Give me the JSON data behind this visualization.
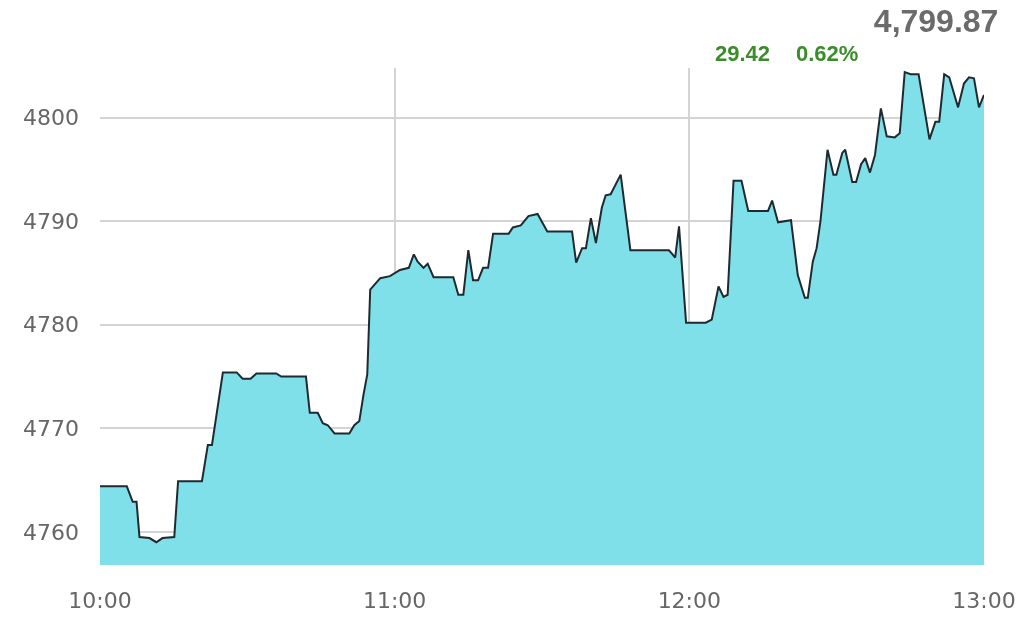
{
  "chart_data": {
    "type": "area",
    "title": "4,799.87",
    "annotations": [
      "29.42",
      "0.62%"
    ],
    "xlim": [
      10,
      13
    ],
    "xticks": [
      {
        "value": 10,
        "label": "10:00"
      },
      {
        "value": 11,
        "label": "11:00"
      },
      {
        "value": 12,
        "label": "12:00"
      },
      {
        "value": 13,
        "label": "13:00"
      }
    ],
    "ylim": [
      4756.8,
      4804.8
    ],
    "yticks": [
      4760,
      4770,
      4780,
      4790,
      4800
    ],
    "grid": true,
    "series": [
      {
        "color": "#7fe0ea",
        "x": [
          10.0,
          10.091,
          10.111,
          10.124,
          10.134,
          10.168,
          10.191,
          10.212,
          10.252,
          10.265,
          10.346,
          10.366,
          10.38,
          10.417,
          10.464,
          10.484,
          10.511,
          10.531,
          10.598,
          10.615,
          10.699,
          10.712,
          10.739,
          10.756,
          10.773,
          10.796,
          10.846,
          10.863,
          10.88,
          10.894,
          10.907,
          10.917,
          10.951,
          10.984,
          11.018,
          11.048,
          11.065,
          11.078,
          11.098,
          11.112,
          11.132,
          11.199,
          11.216,
          11.233,
          11.25,
          11.266,
          11.283,
          11.3,
          11.317,
          11.334,
          11.387,
          11.401,
          11.428,
          11.454,
          11.485,
          11.518,
          11.602,
          11.616,
          11.636,
          11.649,
          11.666,
          11.683,
          11.703,
          11.716,
          11.733,
          11.767,
          11.8,
          11.931,
          11.952,
          11.965,
          11.989,
          12.056,
          12.076,
          12.099,
          12.116,
          12.13,
          12.15,
          12.177,
          12.2,
          12.267,
          12.281,
          12.301,
          12.345,
          12.368,
          12.392,
          12.402,
          12.419,
          12.432,
          12.445,
          12.469,
          12.489,
          12.499,
          12.519,
          12.529,
          12.553,
          12.566,
          12.583,
          12.597,
          12.613,
          12.63,
          12.65,
          12.67,
          12.697,
          12.714,
          12.731,
          12.751,
          12.778,
          12.815,
          12.835,
          12.848,
          12.865,
          12.882,
          12.912,
          12.932,
          12.949,
          12.966,
          12.983,
          13.0
        ],
        "values": [
          4764.4,
          4764.4,
          4762.9,
          4762.9,
          4759.5,
          4759.4,
          4759.0,
          4759.4,
          4759.5,
          4764.9,
          4764.9,
          4768.4,
          4768.4,
          4775.4,
          4775.4,
          4774.8,
          4774.8,
          4775.3,
          4775.3,
          4775.0,
          4775.0,
          4771.5,
          4771.5,
          4770.5,
          4770.3,
          4769.5,
          4769.5,
          4770.3,
          4770.7,
          4773.2,
          4775.2,
          4783.4,
          4784.5,
          4784.7,
          4785.3,
          4785.5,
          4786.8,
          4786.1,
          4785.5,
          4785.9,
          4784.6,
          4784.6,
          4782.9,
          4782.9,
          4787.2,
          4784.3,
          4784.3,
          4785.5,
          4785.5,
          4788.8,
          4788.8,
          4789.4,
          4789.6,
          4790.5,
          4790.7,
          4789.0,
          4789.0,
          4786.0,
          4787.4,
          4787.4,
          4790.3,
          4787.9,
          4791.3,
          4792.5,
          4792.6,
          4794.5,
          4787.2,
          4787.2,
          4786.5,
          4789.5,
          4780.2,
          4780.2,
          4780.5,
          4783.7,
          4782.7,
          4782.9,
          4793.9,
          4793.9,
          4791.0,
          4791.0,
          4792.0,
          4789.9,
          4790.1,
          4784.8,
          4782.6,
          4782.6,
          4786.1,
          4787.4,
          4790.0,
          4796.9,
          4794.5,
          4794.5,
          4796.6,
          4796.9,
          4793.8,
          4793.8,
          4795.5,
          4796.1,
          4794.7,
          4796.4,
          4800.9,
          4798.2,
          4798.1,
          4798.5,
          4804.4,
          4804.2,
          4804.2,
          4797.9,
          4799.6,
          4799.6,
          4804.2,
          4803.9,
          4801.0,
          4803.3,
          4803.9,
          4803.8,
          4801.0,
          4802.2
        ]
      }
    ]
  }
}
